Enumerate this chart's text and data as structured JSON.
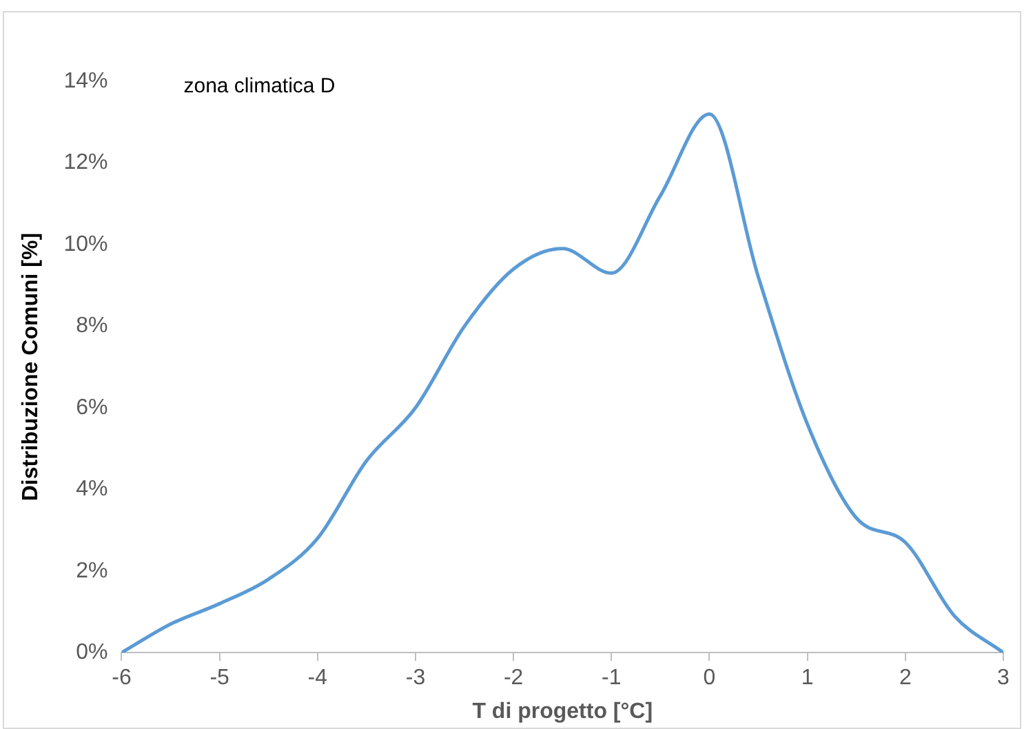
{
  "chart_data": {
    "type": "line",
    "xlabel": "T di progetto [°C]",
    "ylabel": "Distribuzione Comuni [%]",
    "annotations": [
      "zona climatica D"
    ],
    "x": [
      -6,
      -5.5,
      -5,
      -4.5,
      -4,
      -3.5,
      -3,
      -2.5,
      -2,
      -1.5,
      -1,
      -0.5,
      0,
      0.5,
      1,
      1.5,
      2,
      2.5,
      3
    ],
    "series": [
      {
        "color": "#5b9bd5",
        "values": [
          0,
          0.7,
          1.2,
          1.8,
          2.8,
          4.7,
          6.0,
          8.0,
          9.4,
          9.9,
          9.3,
          11.2,
          13.2,
          9.2,
          5.6,
          3.3,
          2.7,
          0.9,
          0
        ]
      }
    ],
    "xlim": [
      -6,
      3
    ],
    "xticks": [
      -6,
      -5,
      -4,
      -3,
      -2,
      -1,
      0,
      1,
      2,
      3
    ],
    "ylim": [
      0,
      14
    ],
    "yticks": [
      {
        "value": 0,
        "label": "0%"
      },
      {
        "value": 2,
        "label": "2%"
      },
      {
        "value": 4,
        "label": "4%"
      },
      {
        "value": 6,
        "label": "6%"
      },
      {
        "value": 8,
        "label": "8%"
      },
      {
        "value": 10,
        "label": "10%"
      },
      {
        "value": 12,
        "label": "12%"
      },
      {
        "value": 14,
        "label": "14%"
      }
    ],
    "grid": false,
    "legend": false,
    "marker": "none",
    "line_style": "solid"
  }
}
